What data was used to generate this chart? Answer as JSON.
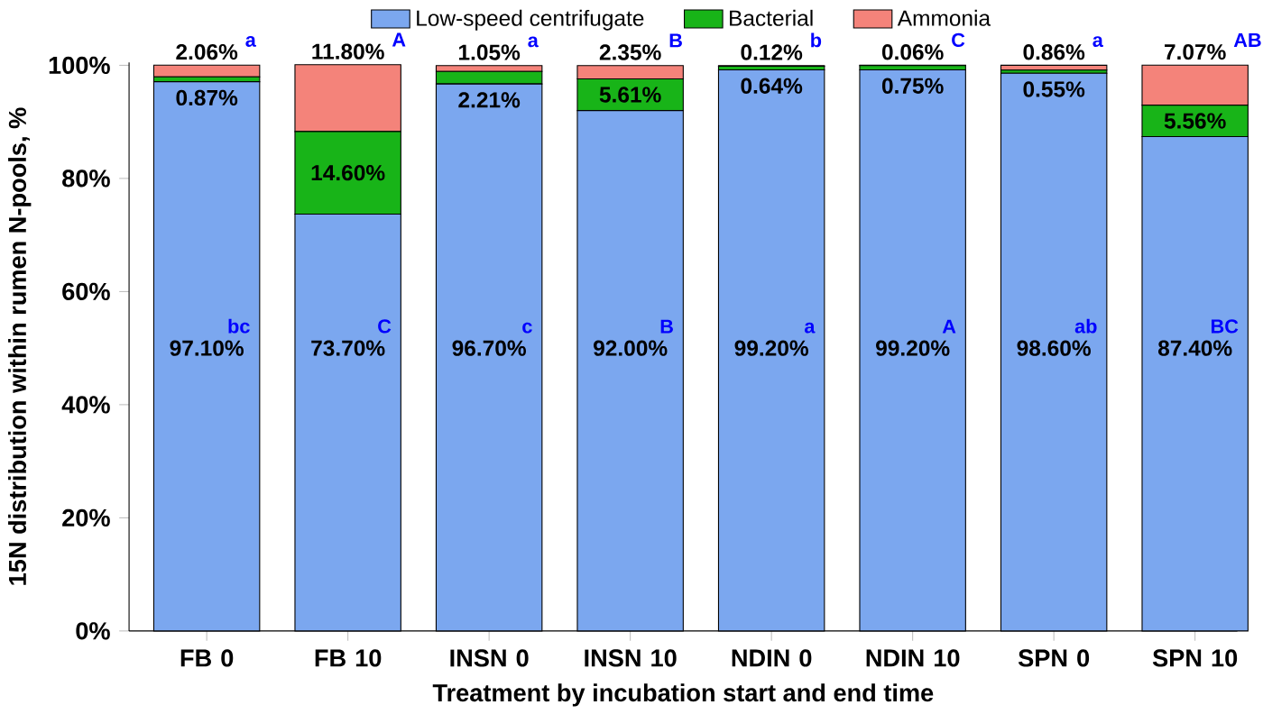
{
  "chart_data": {
    "type": "bar",
    "stacked": true,
    "xlabel": "Treatment by incubation start and end time",
    "ylabel": "15N distribution within rumen N-pools, %",
    "categories": [
      "FB 0",
      "FB 10",
      "INSN 0",
      "INSN 10",
      "NDIN 0",
      "NDIN 10",
      "SPN 0",
      "SPN 10"
    ],
    "series": [
      {
        "name": "Low-speed centrifugate",
        "color": "#7ba7ef",
        "values": [
          97.1,
          73.7,
          96.7,
          92.0,
          99.2,
          99.2,
          98.6,
          87.4
        ],
        "value_labels": [
          "97.10%",
          "73.70%",
          "96.70%",
          "92.00%",
          "99.20%",
          "99.20%",
          "98.60%",
          "87.40%"
        ]
      },
      {
        "name": "Bacterial",
        "color": "#18b418",
        "values": [
          0.87,
          14.6,
          2.21,
          5.61,
          0.64,
          0.75,
          0.55,
          5.56
        ],
        "value_labels": [
          "0.87%",
          "14.60%",
          "2.21%",
          "5.61%",
          "0.64%",
          "0.75%",
          "0.55%",
          "5.56%"
        ]
      },
      {
        "name": "Ammonia",
        "color": "#f4837a",
        "values": [
          2.06,
          11.8,
          1.05,
          2.35,
          0.12,
          0.06,
          0.86,
          7.07
        ],
        "value_labels": [
          "2.06%",
          "11.80%",
          "1.05%",
          "2.35%",
          "0.12%",
          "0.06%",
          "0.86%",
          "7.07%"
        ]
      }
    ],
    "ylim": [
      0,
      100.5
    ],
    "yticks": [
      {
        "value": 0,
        "label": "0%"
      },
      {
        "value": 20,
        "label": "20%"
      },
      {
        "value": 40,
        "label": "40%"
      },
      {
        "value": 60,
        "label": "60%"
      },
      {
        "value": 80,
        "label": "80%"
      },
      {
        "value": 100,
        "label": "100%"
      }
    ],
    "legend": "top",
    "grid": false,
    "annotations": [
      "bc",
      "C",
      "c",
      "B",
      "a",
      "A",
      "ab",
      "BC",
      "a",
      "A",
      "a",
      "B",
      "b",
      "C",
      "a",
      "AB"
    ]
  }
}
